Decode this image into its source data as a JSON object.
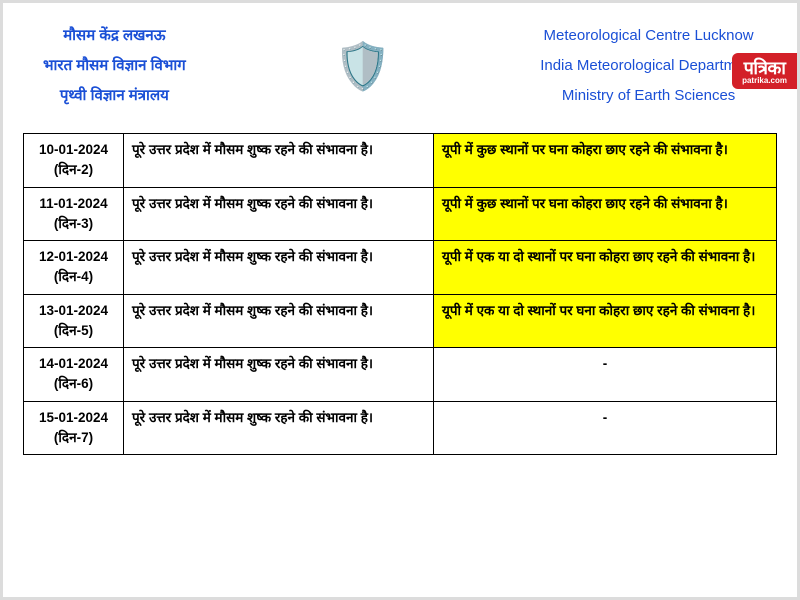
{
  "header": {
    "left_lines": [
      "मौसम केंद्र लखनऊ",
      "भारत मौसम विज्ञान विभाग",
      "पृथ्वी विज्ञान मंत्रालय"
    ],
    "right_lines": [
      "Meteorological Centre Lucknow",
      "India Meteorological Department",
      "Ministry of Earth Sciences"
    ],
    "emblem_glyph": "🛡️"
  },
  "colors": {
    "header_text": "#1a4fd6",
    "highlight_bg": "#ffff00",
    "border": "#000000",
    "watermark_bg": "#d32028"
  },
  "table": {
    "columns": [
      "date",
      "forecast1",
      "forecast2"
    ],
    "rows": [
      {
        "date": "10-01-2024",
        "day": "(दिन-2)",
        "c1": "पूरे उत्तर प्रदेश में मौसम शुष्क रहने की संभावना है।",
        "c2": "यूपी में कुछ स्थानों पर घना कोहरा छाए रहने की संभावना है।",
        "c2_highlight": true
      },
      {
        "date": "11-01-2024",
        "day": "(दिन-3)",
        "c1": "पूरे उत्तर प्रदेश में मौसम शुष्क रहने की संभावना है।",
        "c2": "यूपी में कुछ स्थानों पर घना कोहरा छाए रहने की संभावना है।",
        "c2_highlight": true
      },
      {
        "date": "12-01-2024",
        "day": "(दिन-4)",
        "c1": "पूरे उत्तर प्रदेश में मौसम शुष्क रहने की संभावना है।",
        "c2": "यूपी में एक या दो स्थानों पर घना कोहरा छाए रहने की संभावना है।",
        "c2_highlight": true
      },
      {
        "date": "13-01-2024",
        "day": "(दिन-5)",
        "c1": "पूरे उत्तर प्रदेश में मौसम शुष्क रहने की संभावना है।",
        "c2": "यूपी में एक या दो स्थानों पर घना कोहरा छाए रहने की संभावना है।",
        "c2_highlight": true
      },
      {
        "date": "14-01-2024",
        "day": "(दिन-6)",
        "c1": "पूरे उत्तर प्रदेश में मौसम शुष्क रहने की संभावना है।",
        "c2": "-",
        "c2_highlight": false
      },
      {
        "date": "15-01-2024",
        "day": "(दिन-7)",
        "c1": "पूरे उत्तर प्रदेश में मौसम शुष्क रहने की संभावना है।",
        "c2": "-",
        "c2_highlight": false
      }
    ]
  },
  "watermark": {
    "top": "पत्रिका",
    "bottom": "patrika.com"
  }
}
